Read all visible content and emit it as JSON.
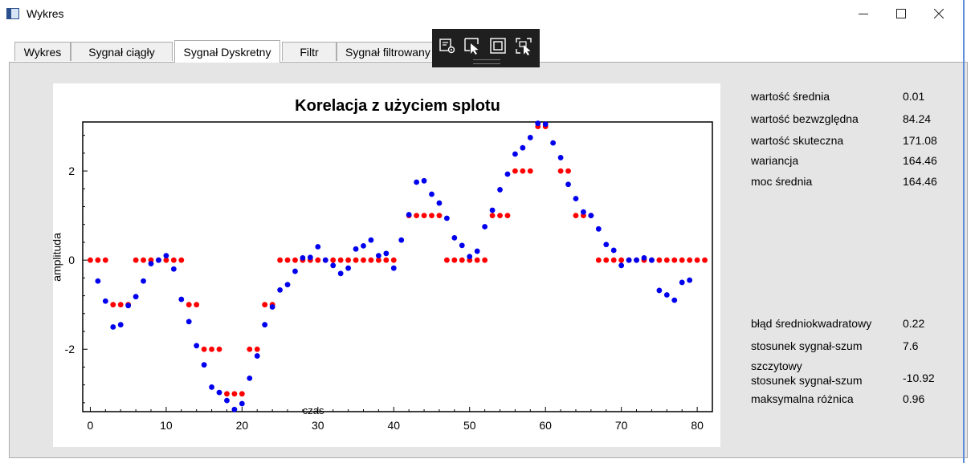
{
  "window": {
    "title": "Wykres",
    "minimize_icon": "minimize-icon",
    "maximize_icon": "maximize-icon",
    "close_icon": "close-icon"
  },
  "tabs": [
    {
      "label": "Wykres",
      "active": false
    },
    {
      "label": "Sygnał ciągły",
      "active": false
    },
    {
      "label": "Sygnał Dyskretny",
      "active": true
    },
    {
      "label": "Filtr",
      "active": false
    },
    {
      "label": "Sygnał filtrowany",
      "active": false
    }
  ],
  "overlay_toolbar": {
    "icons": [
      "settings-cursor-icon",
      "select-element-icon",
      "layout-adorner-icon",
      "track-focus-icon"
    ]
  },
  "stats_top": [
    {
      "label": "wartość średnia",
      "value": "0.01"
    },
    {
      "label": "wartość bezwzględna",
      "value": "84.24"
    },
    {
      "label": "wartość skuteczna",
      "value": "171.08"
    },
    {
      "label": "wariancja",
      "value": "164.46"
    },
    {
      "label": "moc średnia",
      "value": "164.46"
    }
  ],
  "stats_bottom": [
    {
      "label": "błąd średniokwadratowy",
      "value": "0.22"
    },
    {
      "label": "stosunek sygnał-szum",
      "value": "7.6"
    },
    {
      "label": "szczytowy\nstosunek sygnał-szum",
      "value": "-10.92"
    },
    {
      "label": "maksymalna różnica",
      "value": "0.96"
    }
  ],
  "chart_data": {
    "type": "scatter",
    "title": "Korelacja z użyciem splotu",
    "xlabel": "czas",
    "ylabel": "amplituda",
    "xlim": [
      -1,
      82
    ],
    "ylim": [
      -3.4,
      3.1
    ],
    "xticks": [
      0,
      10,
      20,
      30,
      40,
      50,
      60,
      70,
      80
    ],
    "yticks": [
      -2,
      0,
      2
    ],
    "colors": {
      "blue": "#0000ee",
      "red": "#ff0000"
    },
    "series": [
      {
        "color": "#0000ee",
        "x": [
          1,
          2,
          3,
          4,
          5,
          6,
          7,
          8,
          9,
          10,
          11,
          12,
          13,
          14,
          15,
          16,
          17,
          18,
          19,
          20,
          21,
          22,
          23,
          24,
          25,
          26,
          27,
          28,
          29,
          30,
          31,
          32,
          33,
          34,
          35,
          36,
          37,
          38,
          39,
          40,
          41,
          42,
          43,
          44,
          45,
          46,
          47,
          48,
          49,
          50,
          51,
          52,
          53,
          54,
          55,
          56,
          57,
          58,
          59,
          60,
          61,
          62,
          63,
          64,
          65,
          66,
          67,
          68,
          69,
          70,
          71,
          72,
          73,
          74,
          75,
          76,
          77,
          78,
          79
        ],
        "y": [
          -0.47,
          -0.92,
          -1.5,
          -1.45,
          -1.02,
          -0.82,
          -0.47,
          -0.08,
          0.0,
          0.1,
          -0.2,
          -0.88,
          -1.38,
          -1.92,
          -2.35,
          -2.85,
          -2.97,
          -3.15,
          -3.35,
          -3.22,
          -2.65,
          -2.15,
          -1.45,
          -1.05,
          -0.67,
          -0.55,
          -0.25,
          0.05,
          0.06,
          0.3,
          0.0,
          -0.12,
          -0.3,
          -0.18,
          0.25,
          0.32,
          0.45,
          0.1,
          0.15,
          -0.18,
          0.45,
          1.02,
          1.75,
          1.78,
          1.48,
          1.28,
          0.94,
          0.5,
          0.33,
          0.08,
          0.2,
          0.75,
          1.12,
          1.58,
          1.93,
          2.38,
          2.52,
          2.75,
          3.07,
          3.05,
          2.63,
          2.3,
          1.7,
          1.38,
          1.08,
          1.0,
          0.7,
          0.35,
          0.22,
          -0.12,
          0.0,
          0.0,
          0.05,
          0.0,
          -0.68,
          -0.78,
          -0.9,
          -0.5,
          -0.45
        ]
      },
      {
        "color": "#ff0000",
        "x": [
          0,
          1,
          2,
          3,
          4,
          5,
          6,
          7,
          8,
          9,
          10,
          11,
          12,
          13,
          14,
          15,
          16,
          17,
          18,
          19,
          20,
          21,
          22,
          23,
          24,
          25,
          26,
          27,
          28,
          29,
          30,
          31,
          32,
          33,
          34,
          35,
          36,
          37,
          38,
          39,
          40,
          42,
          43,
          44,
          45,
          46,
          47,
          48,
          49,
          50,
          51,
          52,
          53,
          54,
          55,
          56,
          57,
          58,
          59,
          60,
          62,
          63,
          64,
          65,
          66,
          67,
          68,
          69,
          70,
          71,
          72,
          73,
          74,
          75,
          76,
          77,
          78,
          79,
          80,
          81
        ],
        "y": [
          0,
          0,
          0,
          -1,
          -1,
          -1,
          0,
          0,
          0,
          0,
          0,
          0,
          0,
          -1,
          -1,
          -2,
          -2,
          -2,
          -3,
          -3,
          -3,
          -2,
          -2,
          -1,
          -1,
          0,
          0,
          0,
          0,
          0,
          0,
          0,
          0,
          0,
          0,
          0,
          0,
          0,
          0,
          0,
          0,
          1,
          1,
          1,
          1,
          1,
          0,
          0,
          0,
          0,
          0,
          0,
          1,
          1,
          1,
          2,
          2,
          2,
          3,
          3,
          2,
          2,
          1,
          1,
          1,
          0,
          0,
          0,
          0,
          0,
          0,
          0,
          0,
          0,
          0,
          0,
          0,
          0,
          0,
          0
        ]
      }
    ]
  }
}
